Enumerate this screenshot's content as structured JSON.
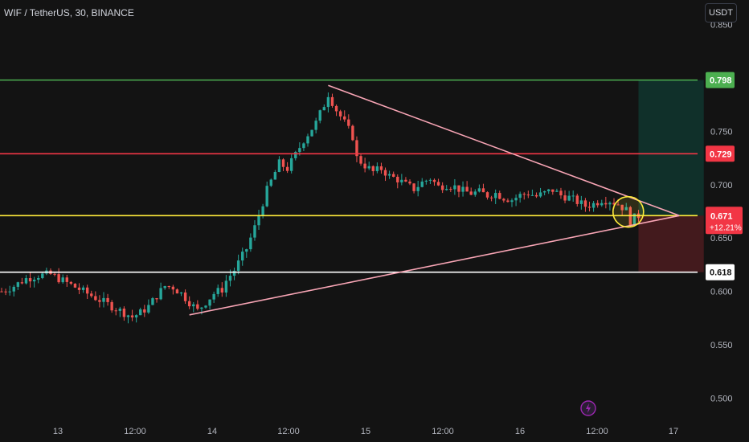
{
  "header": {
    "symbol": "WIF / TetherUS, 30, BINANCE",
    "currency": "USDT"
  },
  "colors": {
    "background": "#131313",
    "axis_text": "#b2b5be",
    "bull": "#26a69a",
    "bear": "#ef5350",
    "resistance": "#4caf50",
    "target": "#f23645",
    "current": "#ffeb3b",
    "support": "#ffffff",
    "trendline": "#f8a5b5",
    "highlight_circle": "#ffeb3b",
    "lightning": "#9c27b0"
  },
  "chart_data": {
    "type": "candlestick",
    "y_range": [
      0.48,
      0.873
    ],
    "y_ticks": [
      "0.850",
      "0.750",
      "0.700",
      "0.650",
      "0.600",
      "0.550",
      "0.500"
    ],
    "x_ticks": [
      "13",
      "12:00",
      "14",
      "12:00",
      "15",
      "12:00",
      "16",
      "12:00",
      "17"
    ],
    "horizontal_levels": [
      {
        "name": "resistance",
        "price": 0.798,
        "label": "0.798"
      },
      {
        "name": "target",
        "price": 0.729,
        "label": "0.729"
      },
      {
        "name": "current",
        "price": 0.671,
        "label": "0.671",
        "sub_label": "+12.21%"
      },
      {
        "name": "support",
        "price": 0.618,
        "label": "0.618"
      }
    ],
    "price_path": [
      [
        0,
        0.6
      ],
      [
        3,
        0.605
      ],
      [
        6,
        0.612
      ],
      [
        9,
        0.615
      ],
      [
        12,
        0.616
      ],
      [
        15,
        0.61
      ],
      [
        18,
        0.604
      ],
      [
        21,
        0.598
      ],
      [
        24,
        0.592
      ],
      [
        27,
        0.586
      ],
      [
        30,
        0.58
      ],
      [
        32,
        0.576
      ],
      [
        34,
        0.58
      ],
      [
        36,
        0.586
      ],
      [
        38,
        0.596
      ],
      [
        40,
        0.605
      ],
      [
        42,
        0.604
      ],
      [
        44,
        0.598
      ],
      [
        46,
        0.59
      ],
      [
        48,
        0.582
      ],
      [
        50,
        0.59
      ],
      [
        52,
        0.598
      ],
      [
        54,
        0.602
      ],
      [
        55,
        0.61
      ],
      [
        57,
        0.62
      ],
      [
        60,
        0.64
      ],
      [
        62,
        0.66
      ],
      [
        65,
        0.695
      ],
      [
        68,
        0.72
      ],
      [
        70,
        0.715
      ],
      [
        72,
        0.728
      ],
      [
        74,
        0.742
      ],
      [
        77,
        0.758
      ],
      [
        79,
        0.775
      ],
      [
        80,
        0.785
      ],
      [
        82,
        0.77
      ],
      [
        84,
        0.758
      ],
      [
        86,
        0.745
      ],
      [
        87,
        0.725
      ],
      [
        89,
        0.718
      ],
      [
        91,
        0.712
      ],
      [
        93,
        0.715
      ],
      [
        95,
        0.708
      ],
      [
        97,
        0.705
      ],
      [
        99,
        0.7
      ],
      [
        101,
        0.696
      ],
      [
        103,
        0.702
      ],
      [
        105,
        0.706
      ],
      [
        107,
        0.698
      ],
      [
        109,
        0.7
      ],
      [
        111,
        0.698
      ],
      [
        113,
        0.694
      ],
      [
        115,
        0.692
      ],
      [
        117,
        0.693
      ],
      [
        119,
        0.69
      ],
      [
        121,
        0.692
      ],
      [
        123,
        0.688
      ],
      [
        125,
        0.686
      ],
      [
        127,
        0.69
      ],
      [
        129,
        0.692
      ],
      [
        131,
        0.689
      ],
      [
        133,
        0.692
      ],
      [
        135,
        0.695
      ],
      [
        137,
        0.69
      ],
      [
        139,
        0.688
      ],
      [
        141,
        0.684
      ],
      [
        143,
        0.68
      ],
      [
        145,
        0.682
      ],
      [
        147,
        0.686
      ],
      [
        149,
        0.685
      ],
      [
        151,
        0.682
      ],
      [
        153,
        0.676
      ],
      [
        154,
        0.666
      ],
      [
        155,
        0.669
      ],
      [
        156,
        0.671
      ]
    ],
    "trendlines": [
      {
        "name": "upper-trendline",
        "start": [
          80,
          0.793
        ],
        "end": [
          166,
          0.671
        ]
      },
      {
        "name": "lower-trendline",
        "start": [
          46,
          0.578
        ],
        "end": [
          166,
          0.671
        ]
      }
    ],
    "position": {
      "entry": 0.671,
      "target": 0.798,
      "stop": 0.618,
      "x_range": [
        156,
        172
      ]
    }
  }
}
